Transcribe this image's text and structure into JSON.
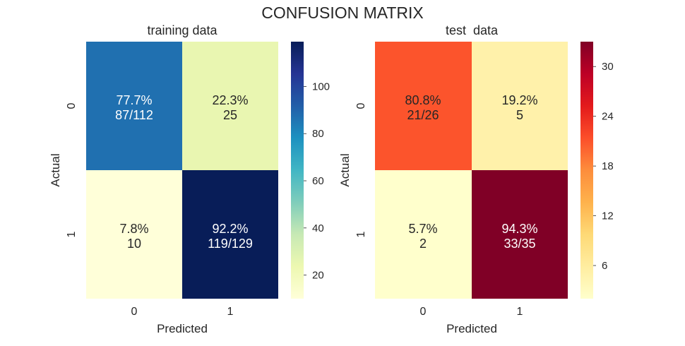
{
  "figure": {
    "suptitle": "CONFUSION MATRIX"
  },
  "chart_data": [
    {
      "type": "heatmap",
      "title": "training data",
      "xlabel": "Predicted",
      "ylabel": "Actual",
      "x_categories": [
        "0",
        "1"
      ],
      "y_categories": [
        "0",
        "1"
      ],
      "values": [
        [
          87,
          25
        ],
        [
          10,
          119
        ]
      ],
      "cell_labels": [
        [
          "77.7%\n87/112",
          "22.3%\n25"
        ],
        [
          "7.8%\n10",
          "92.2%\n119/129"
        ]
      ],
      "colormap": "YlGnBu",
      "vmin": 10,
      "vmax": 119,
      "colorbar_ticks": [
        20,
        40,
        60,
        80,
        100
      ],
      "colorbar": true
    },
    {
      "type": "heatmap",
      "title": "test  data",
      "xlabel": "Predicted",
      "ylabel": "Actual",
      "x_categories": [
        "0",
        "1"
      ],
      "y_categories": [
        "0",
        "1"
      ],
      "values": [
        [
          21,
          5
        ],
        [
          2,
          33
        ]
      ],
      "cell_labels": [
        [
          "80.8%\n21/26",
          "19.2%\n5"
        ],
        [
          "5.7%\n2",
          "94.3%\n33/35"
        ]
      ],
      "colormap": "YlOrRd",
      "vmin": 2,
      "vmax": 33,
      "colorbar_ticks": [
        6,
        12,
        18,
        24,
        30
      ],
      "colorbar": true
    }
  ]
}
